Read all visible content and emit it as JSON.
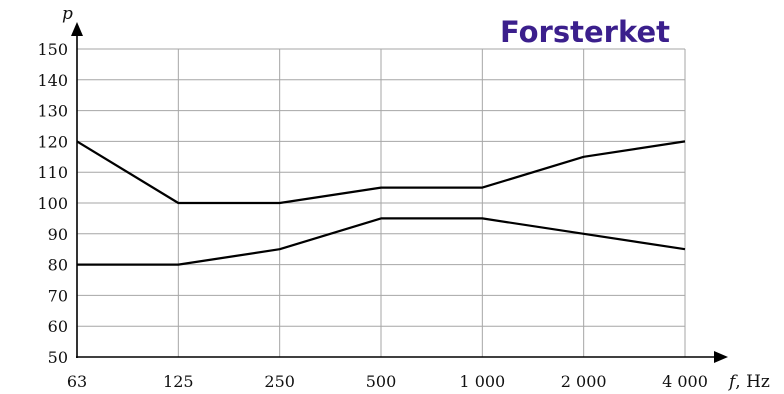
{
  "chart_data": {
    "type": "line",
    "banner": "Forsterket",
    "ylabel": "p",
    "xlabel": "f",
    "xunit": ", Hz",
    "categories": [
      "63",
      "125",
      "250",
      "500",
      "1 000",
      "2 000",
      "4 000"
    ],
    "y_ticks": [
      "50",
      "60",
      "70",
      "80",
      "90",
      "100",
      "110",
      "120",
      "130",
      "140",
      "150"
    ],
    "ylim": [
      50,
      150
    ],
    "grid": true,
    "series": [
      {
        "values": [
          120,
          100,
          100,
          105,
          105,
          115,
          120
        ]
      },
      {
        "values": [
          80,
          80,
          85,
          95,
          95,
          90,
          85
        ]
      }
    ]
  }
}
